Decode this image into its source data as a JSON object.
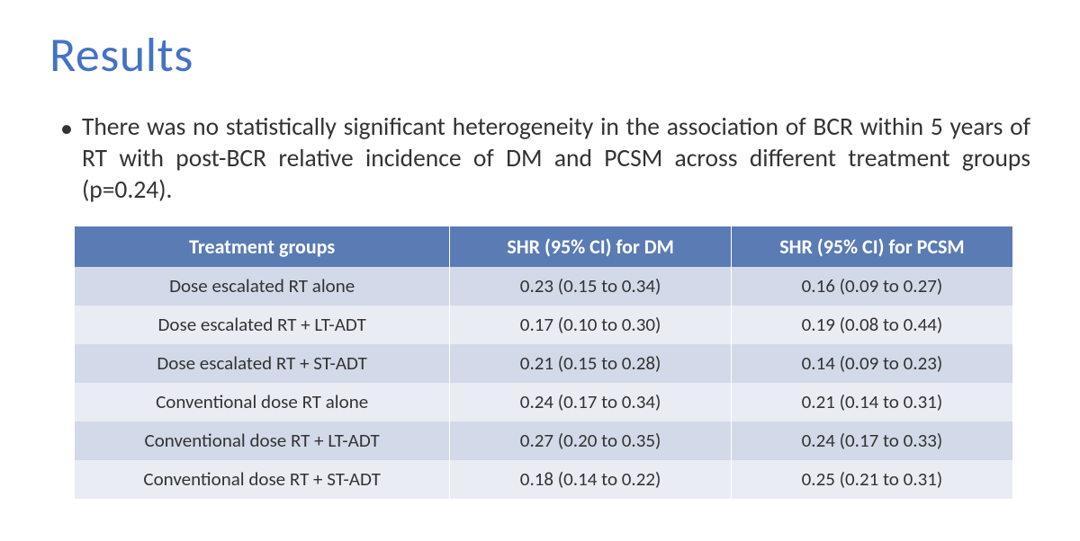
{
  "title": "Results",
  "bullet": "There was no statistically significant heterogeneity in the association of BCR within 5 years of RT with post-BCR relative incidence of DM and PCSM across different treatment groups (p=0.24).",
  "table": {
    "type": "table",
    "header_bg": "#5b7bb4",
    "header_text_color": "#ffffff",
    "row_odd_bg": "#d2d9e8",
    "row_even_bg": "#e9ecf3",
    "cell_text_color": "#333333",
    "header_fontsize": 22,
    "cell_fontsize": 21,
    "columns": [
      "Treatment groups",
      "SHR (95% CI) for DM",
      "SHR (95% CI) for PCSM"
    ],
    "column_widths_pct": [
      40,
      30,
      30
    ],
    "rows": [
      [
        "Dose escalated RT alone",
        "0.23 (0.15 to 0.34)",
        "0.16 (0.09 to 0.27)"
      ],
      [
        "Dose escalated RT + LT-ADT",
        "0.17 (0.10 to 0.30)",
        "0.19 (0.08 to 0.44)"
      ],
      [
        "Dose escalated RT + ST-ADT",
        "0.21 (0.15 to 0.28)",
        "0.14 (0.09 to 0.23)"
      ],
      [
        "Conventional dose RT alone",
        "0.24 (0.17 to 0.34)",
        "0.21 (0.14 to 0.31)"
      ],
      [
        "Conventional dose RT + LT-ADT",
        "0.27 (0.20 to 0.35)",
        "0.24 (0.17 to 0.33)"
      ],
      [
        "Conventional dose RT + ST-ADT",
        "0.18 (0.14 to 0.22)",
        "0.25 (0.21 to 0.31)"
      ]
    ]
  },
  "colors": {
    "title": "#4472c4",
    "body_text": "#333333",
    "background": "#ffffff"
  },
  "fonts": {
    "title_size_pt": 40,
    "body_size_pt": 21,
    "family": "Calibri"
  }
}
